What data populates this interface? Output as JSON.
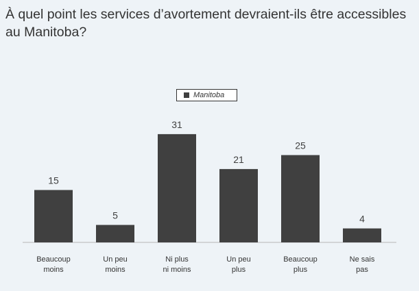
{
  "title": "À quel point les services d’avortement devraient-ils être accessibles au Manitoba?",
  "chart_data": {
    "type": "bar",
    "categories": [
      [
        "Beaucoup",
        "moins"
      ],
      [
        "Un peu",
        "moins"
      ],
      [
        "Ni plus",
        "ni moins"
      ],
      [
        "Un peu",
        "plus"
      ],
      [
        "Beaucoup",
        "plus"
      ],
      [
        "Ne sais",
        "pas"
      ]
    ],
    "series": [
      {
        "name": "Manitoba",
        "values": [
          15,
          5,
          31,
          21,
          25,
          4
        ],
        "color": "#404040"
      }
    ],
    "ylim": [
      0,
      35
    ],
    "grid": false,
    "legend_position": "top-center",
    "data_labels": true
  }
}
